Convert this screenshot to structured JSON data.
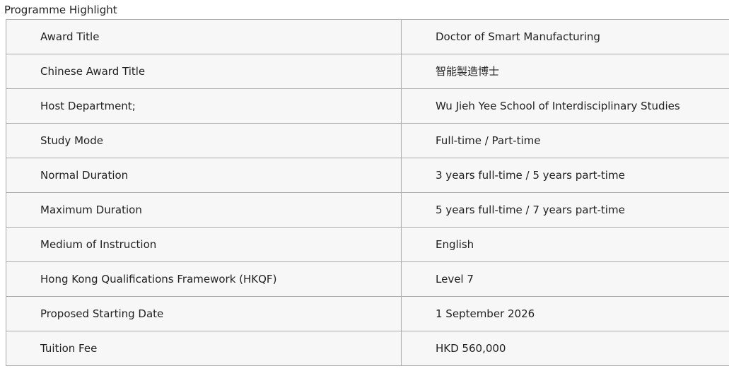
{
  "page": {
    "title": "Programme Highlight"
  },
  "colors": {
    "border": "#ababab",
    "cell_background": "#f7f7f7",
    "text": "#222222",
    "page_background": "#ffffff"
  },
  "table": {
    "rows": [
      {
        "label": "Award Title",
        "value": "Doctor of Smart Manufacturing"
      },
      {
        "label": "Chinese Award Title",
        "value": "智能製造博士"
      },
      {
        "label": "Host Department;",
        "value": "Wu Jieh Yee School of Interdisciplinary Studies"
      },
      {
        "label": "Study Mode",
        "value": "Full-time / Part-time"
      },
      {
        "label": "Normal Duration",
        "value": "3 years full-time / 5 years part-time"
      },
      {
        "label": "Maximum Duration",
        "value": "5 years full-time / 7 years part-time"
      },
      {
        "label": "Medium of Instruction",
        "value": "English"
      },
      {
        "label": "Hong Kong Qualifications Framework (HKQF)",
        "value": "Level 7"
      },
      {
        "label": "Proposed Starting Date",
        "value": "1 September 2026"
      },
      {
        "label": "Tuition Fee",
        "value": "HKD 560,000"
      }
    ]
  }
}
